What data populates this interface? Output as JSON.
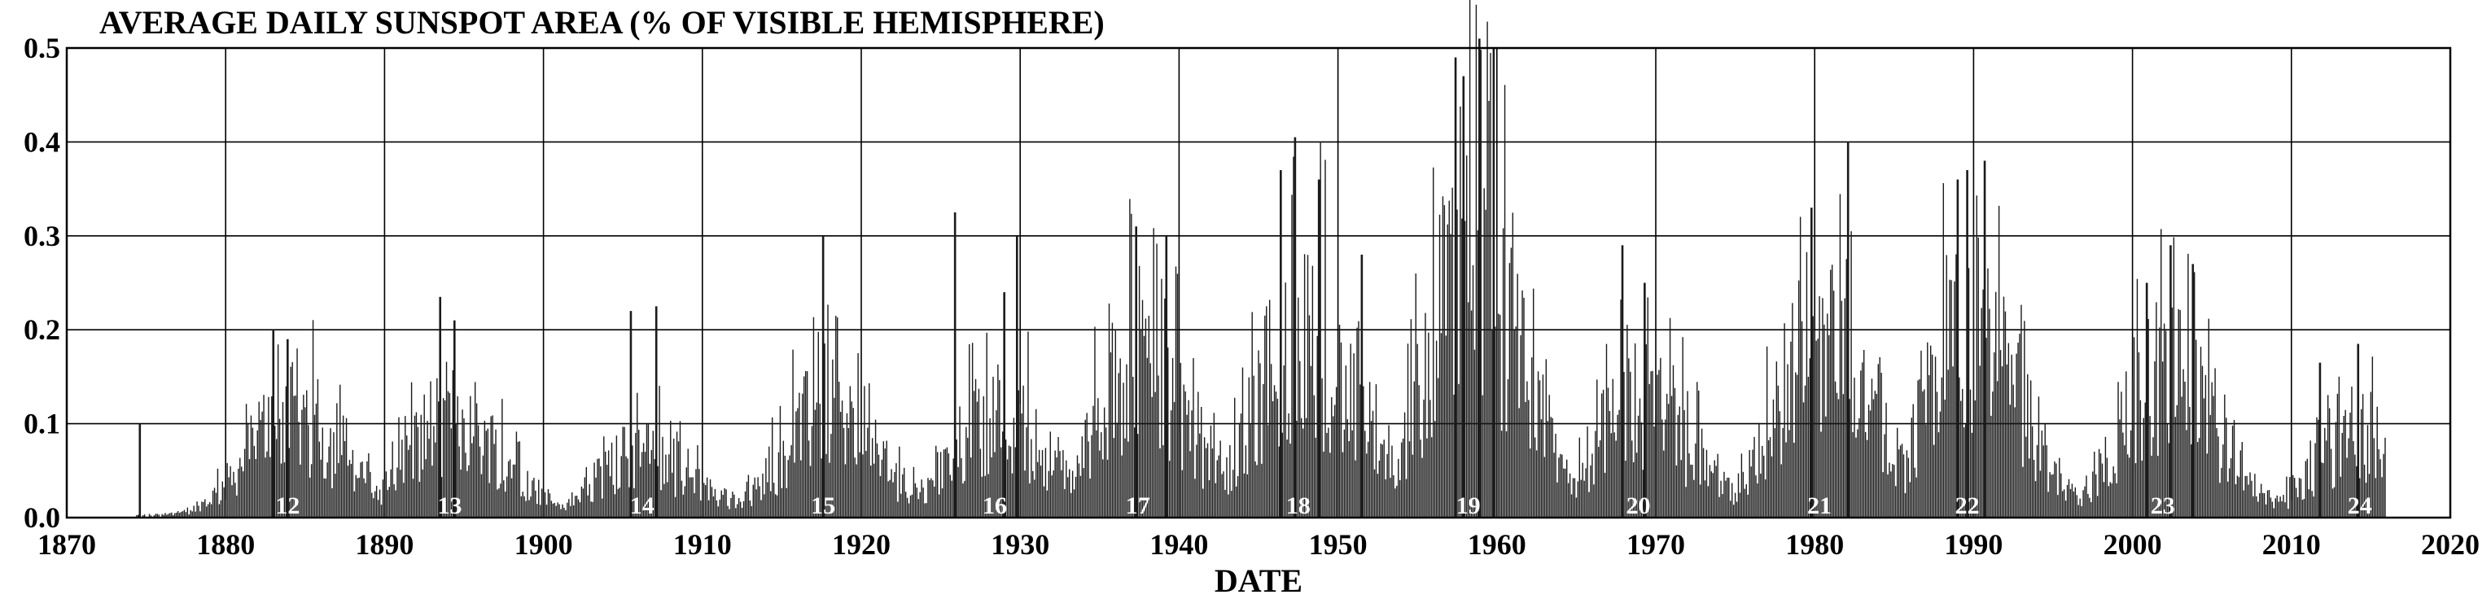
{
  "chart_data": {
    "type": "bar",
    "title": "AVERAGE DAILY SUNSPOT AREA (% OF VISIBLE HEMISPHERE)",
    "xlabel": "DATE",
    "ylabel": "",
    "xlim": [
      1870,
      2020
    ],
    "ylim": [
      0,
      0.5
    ],
    "x_ticks": [
      "1870",
      "1880",
      "1890",
      "1900",
      "1910",
      "1920",
      "1930",
      "1940",
      "1950",
      "1960",
      "1970",
      "1980",
      "1990",
      "2000",
      "2010",
      "2020"
    ],
    "y_ticks": [
      "0.0",
      "0.1",
      "0.2",
      "0.3",
      "0.4",
      "0.5"
    ],
    "grid": true,
    "bar_color": "#1a1a1a",
    "data_start": 1874.4,
    "data_end": 2015.9,
    "cycles": [
      {
        "label": "12",
        "year": 1883.9,
        "peak": 0.12
      },
      {
        "label": "13",
        "year": 1894.1,
        "peak": 0.12
      },
      {
        "label": "14",
        "year": 1906.2,
        "peak": 0.075
      },
      {
        "label": "15",
        "year": 1917.6,
        "peak": 0.12
      },
      {
        "label": "16",
        "year": 1928.4,
        "peak": 0.12
      },
      {
        "label": "17",
        "year": 1937.4,
        "peak": 0.18
      },
      {
        "label": "18",
        "year": 1947.5,
        "peak": 0.22
      },
      {
        "label": "19",
        "year": 1958.2,
        "peak": 0.3
      },
      {
        "label": "20",
        "year": 1968.9,
        "peak": 0.14
      },
      {
        "label": "21",
        "year": 1980.3,
        "peak": 0.22
      },
      {
        "label": "22",
        "year": 1989.6,
        "peak": 0.22
      },
      {
        "label": "23",
        "year": 2001.9,
        "peak": 0.17
      },
      {
        "label": "24",
        "year": 2014.3,
        "peak": 0.1
      }
    ],
    "spikes": [
      {
        "year": 1874.6,
        "value": 0.1
      },
      {
        "year": 1883.0,
        "value": 0.2
      },
      {
        "year": 1883.9,
        "value": 0.19
      },
      {
        "year": 1893.5,
        "value": 0.235
      },
      {
        "year": 1894.4,
        "value": 0.21
      },
      {
        "year": 1905.5,
        "value": 0.22
      },
      {
        "year": 1907.1,
        "value": 0.225
      },
      {
        "year": 1917.6,
        "value": 0.3
      },
      {
        "year": 1925.9,
        "value": 0.325
      },
      {
        "year": 1929.0,
        "value": 0.24
      },
      {
        "year": 1929.8,
        "value": 0.3
      },
      {
        "year": 1937.3,
        "value": 0.31
      },
      {
        "year": 1939.2,
        "value": 0.3
      },
      {
        "year": 1946.4,
        "value": 0.37
      },
      {
        "year": 1947.3,
        "value": 0.405
      },
      {
        "year": 1948.8,
        "value": 0.36
      },
      {
        "year": 1951.5,
        "value": 0.28
      },
      {
        "year": 1957.4,
        "value": 0.49
      },
      {
        "year": 1957.9,
        "value": 0.47
      },
      {
        "year": 1958.9,
        "value": 0.51
      },
      {
        "year": 1959.8,
        "value": 0.5
      },
      {
        "year": 1967.9,
        "value": 0.29
      },
      {
        "year": 1969.3,
        "value": 0.25
      },
      {
        "year": 1979.8,
        "value": 0.33
      },
      {
        "year": 1982.1,
        "value": 0.4
      },
      {
        "year": 1989.0,
        "value": 0.36
      },
      {
        "year": 1989.6,
        "value": 0.37
      },
      {
        "year": 1990.7,
        "value": 0.38
      },
      {
        "year": 2000.9,
        "value": 0.25
      },
      {
        "year": 2002.4,
        "value": 0.29
      },
      {
        "year": 2003.8,
        "value": 0.27
      },
      {
        "year": 2011.8,
        "value": 0.165
      },
      {
        "year": 2014.2,
        "value": 0.185
      }
    ]
  }
}
